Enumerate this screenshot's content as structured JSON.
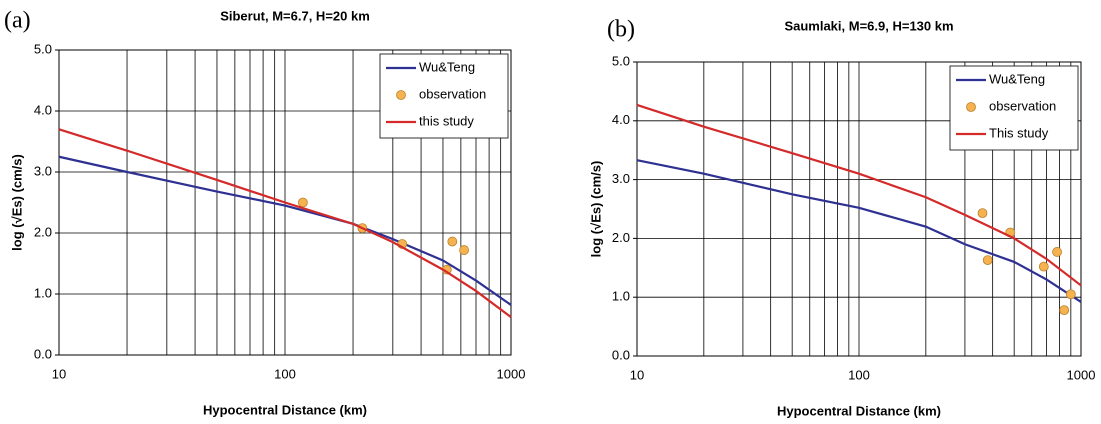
{
  "chart_data": [
    {
      "type": "line",
      "panel_label": "(a)",
      "title": "Siberut, M=6.7, H=20 km",
      "x_label": "Hypocentral Distance (km)",
      "y_label": "log (√Es) (cm/s)",
      "xlog": true,
      "xlim": [
        10,
        1000
      ],
      "xticks": [
        10,
        100,
        1000
      ],
      "xgrid": [
        20,
        30,
        40,
        50,
        60,
        70,
        80,
        90,
        200,
        300,
        400,
        500,
        600,
        700,
        800,
        900
      ],
      "ylim": [
        0,
        5
      ],
      "yticks": [
        {
          "value": 0,
          "label": "0.0"
        },
        {
          "value": 1,
          "label": "1.0"
        },
        {
          "value": 2,
          "label": "2.0"
        },
        {
          "value": 3,
          "label": "3.0"
        },
        {
          "value": 4,
          "label": "4.0"
        },
        {
          "value": 5,
          "label": "5.0"
        }
      ],
      "grid": true,
      "legend": "upper right",
      "series": [
        {
          "name": "Wu&Teng",
          "color": "#2e3192",
          "mode": "line",
          "x": [
            10,
            20,
            50,
            100,
            200,
            300,
            500,
            700,
            1000
          ],
          "values": [
            3.25,
            3.0,
            2.68,
            2.45,
            2.15,
            1.9,
            1.55,
            1.22,
            0.82
          ]
        },
        {
          "name": "observation",
          "color": "#f6b24f",
          "mode": "markers",
          "x": [
            120,
            220,
            330,
            520,
            550,
            620
          ],
          "values": [
            2.5,
            2.08,
            1.82,
            1.4,
            1.86,
            1.72
          ]
        },
        {
          "name": "this study",
          "color": "#d42a2a",
          "mode": "line",
          "x": [
            10,
            20,
            50,
            100,
            200,
            300,
            500,
            700,
            1000
          ],
          "values": [
            3.7,
            3.35,
            2.87,
            2.5,
            2.15,
            1.85,
            1.4,
            1.05,
            0.62
          ]
        }
      ]
    },
    {
      "type": "line",
      "panel_label": "(b)",
      "title": "Saumlaki, M=6.9, H=130 km",
      "x_label": "Hypocentral Distance (km)",
      "y_label": "log (√Es) (cm/s)",
      "xlog": true,
      "xlim": [
        10,
        1000
      ],
      "xticks": [
        10,
        100,
        1000
      ],
      "xgrid": [
        20,
        30,
        40,
        50,
        60,
        70,
        80,
        90,
        200,
        300,
        400,
        500,
        600,
        700,
        800,
        900
      ],
      "ylim": [
        0,
        5
      ],
      "yticks": [
        {
          "value": 0,
          "label": "0.0"
        },
        {
          "value": 1,
          "label": "1.0"
        },
        {
          "value": 2,
          "label": "2.0"
        },
        {
          "value": 3,
          "label": "3.0"
        },
        {
          "value": 4,
          "label": "4.0"
        },
        {
          "value": 5,
          "label": "5.0"
        }
      ],
      "grid": true,
      "legend": "upper right",
      "series": [
        {
          "name": "Wu&Teng",
          "color": "#2e3192",
          "mode": "line",
          "x": [
            10,
            20,
            50,
            100,
            200,
            300,
            500,
            700,
            1000
          ],
          "values": [
            3.33,
            3.1,
            2.75,
            2.52,
            2.2,
            1.9,
            1.6,
            1.3,
            0.92
          ]
        },
        {
          "name": "observation",
          "color": "#f6b24f",
          "mode": "markers",
          "x": [
            360,
            380,
            480,
            680,
            780,
            840,
            900
          ],
          "values": [
            2.43,
            1.63,
            2.1,
            1.52,
            1.77,
            0.78,
            1.05
          ]
        },
        {
          "name": "This study",
          "color": "#d42a2a",
          "mode": "line",
          "x": [
            10,
            20,
            50,
            100,
            200,
            300,
            500,
            700,
            1000
          ],
          "values": [
            4.27,
            3.9,
            3.45,
            3.1,
            2.7,
            2.4,
            2.0,
            1.65,
            1.2
          ]
        }
      ]
    }
  ]
}
